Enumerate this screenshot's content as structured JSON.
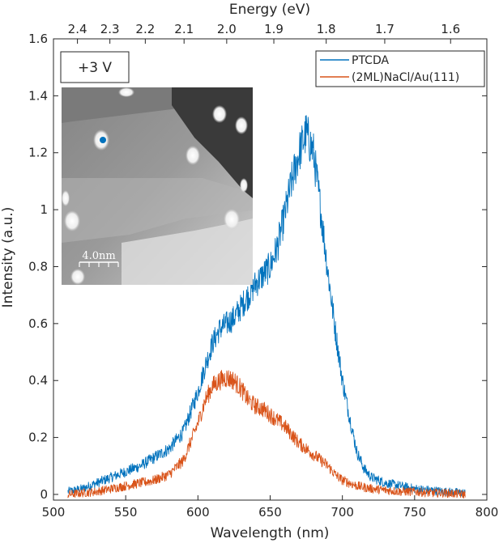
{
  "chart_data": {
    "type": "line",
    "xlabel": "Wavelength (nm)",
    "ylabel": "Intensity (a.u.)",
    "top_xlabel": "Energy (eV)",
    "xlim": [
      500,
      800
    ],
    "ylim": [
      -0.02,
      1.6
    ],
    "x_ticks": [
      500,
      550,
      600,
      650,
      700,
      750,
      800
    ],
    "y_ticks": [
      0,
      0.2,
      0.4,
      0.6,
      0.8,
      1,
      1.2,
      1.4,
      1.6
    ],
    "y_tick_labels": [
      "0",
      "0.2",
      "0.4",
      "0.6",
      "0.8",
      "1",
      "1.2",
      "1.4",
      "1.6"
    ],
    "top_ticks": [
      2.4,
      2.3,
      2.2,
      2.1,
      2.0,
      1.9,
      1.8,
      1.7,
      1.6
    ],
    "top_tick_labels": [
      "2.4",
      "2.3",
      "2.2",
      "2.1",
      "2.0",
      "1.9",
      "1.8",
      "1.7",
      "1.6"
    ],
    "legend_position": "top-right",
    "grid": false,
    "series": [
      {
        "name": "PTCDA",
        "color": "#0072BD",
        "x": [
          510,
          520,
          530,
          540,
          550,
          560,
          570,
          580,
          590,
          600,
          605,
          610,
          615,
          620,
          625,
          630,
          635,
          640,
          645,
          650,
          655,
          660,
          665,
          670,
          675,
          680,
          685,
          690,
          695,
          700,
          705,
          710,
          715,
          720,
          730,
          740,
          750,
          760,
          770,
          785
        ],
        "values": [
          0.01,
          0.02,
          0.04,
          0.06,
          0.08,
          0.1,
          0.13,
          0.16,
          0.22,
          0.36,
          0.45,
          0.53,
          0.58,
          0.6,
          0.62,
          0.66,
          0.7,
          0.74,
          0.77,
          0.8,
          0.87,
          0.98,
          1.1,
          1.2,
          1.27,
          1.2,
          1.0,
          0.78,
          0.58,
          0.4,
          0.27,
          0.15,
          0.09,
          0.06,
          0.04,
          0.03,
          0.02,
          0.015,
          0.01,
          0.005
        ]
      },
      {
        "name": "(2ML)NaCl/Au(111)",
        "color": "#D95319",
        "x": [
          510,
          520,
          530,
          540,
          550,
          560,
          570,
          580,
          590,
          600,
          605,
          610,
          615,
          620,
          625,
          630,
          635,
          640,
          645,
          650,
          655,
          660,
          665,
          670,
          675,
          680,
          685,
          690,
          695,
          700,
          705,
          710,
          720,
          730,
          740,
          750,
          760,
          770,
          785
        ],
        "values": [
          0.0,
          0.005,
          0.01,
          0.02,
          0.03,
          0.04,
          0.05,
          0.07,
          0.12,
          0.25,
          0.33,
          0.38,
          0.4,
          0.41,
          0.4,
          0.37,
          0.33,
          0.31,
          0.3,
          0.28,
          0.26,
          0.24,
          0.21,
          0.18,
          0.16,
          0.14,
          0.12,
          0.1,
          0.07,
          0.05,
          0.04,
          0.03,
          0.02,
          0.015,
          0.01,
          0.01,
          0.005,
          0.005,
          0.0
        ]
      }
    ]
  },
  "inset": {
    "bias_label": "+3 V",
    "scale_label": "4.0nm",
    "marker_color": "#0072BD"
  }
}
